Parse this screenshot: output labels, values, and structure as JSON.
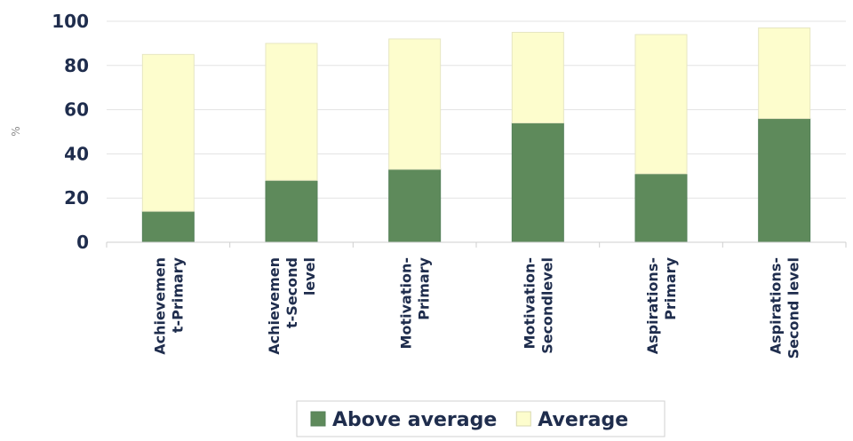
{
  "chart_data": {
    "type": "bar",
    "stacked": true,
    "categories": [
      [
        "Achievemen",
        "t-Primary"
      ],
      [
        "Achievemen",
        "t-Second",
        "level"
      ],
      [
        "Motivation-",
        "Primary"
      ],
      [
        "Motivation-",
        "Secondlevel"
      ],
      [
        "Aspirations-",
        "Primary"
      ],
      [
        "Aspirations-",
        "Second level"
      ]
    ],
    "series": [
      {
        "name": "Above average",
        "color": "#5e8a5b",
        "values": [
          14,
          28,
          33,
          54,
          31,
          56
        ]
      },
      {
        "name": "Average",
        "color": "#fdfdcd",
        "values": [
          71,
          62,
          59,
          41,
          63,
          41
        ]
      }
    ],
    "ylabel": "%",
    "ylim": [
      0,
      100
    ],
    "yticks": [
      0,
      20,
      40,
      60,
      80,
      100
    ],
    "grid": true,
    "legend_position": "bottom"
  }
}
